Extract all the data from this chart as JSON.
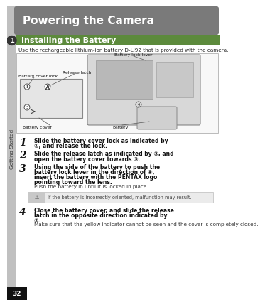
{
  "title": "Powering the Camera",
  "title_bg": "#7a7a7a",
  "title_color": "#ffffff",
  "section_title": "Installing the Battery",
  "section_bg": "#5c8a3c",
  "section_color": "#ffffff",
  "intro_text": "Use the rechargeable lithium-ion battery D-LI92 that is provided with the camera.",
  "step1_bold": "Slide the battery cover lock as indicated by ①, and release the lock.",
  "step2_bold": "Slide the release latch as indicated by ②, and open the battery cover towards ③.",
  "step3_bold": "Using the side of the battery to push the battery lock lever in the direction of ④, insert the battery with the PENTAX logo pointing toward the lens.",
  "step3_normal": "Push the battery in until it is locked in place.",
  "step4_bold": "Close the battery cover, and slide the release latch in the opposite direction indicated by ②.",
  "step4_normal": "Make sure that the yellow indicator cannot be seen and the cover is completely closed.",
  "warning_text": "If the battery is incorrectly oriented, malfunction may result.",
  "sidebar_text": "Getting Started",
  "page_num": "32",
  "bg_color": "#ffffff",
  "sidebar_bg": "#c0c0c0",
  "image_bg": "#f8f8f8",
  "image_border": "#bbbbbb",
  "warn_bg": "#ebebeb",
  "warn_icon_bg": "#c8c8c8",
  "label_battery_lock_lever": "Battery lock lever",
  "label_release_latch": "Release latch",
  "label_battery_cover_lock": "Battery cover lock",
  "label_battery_cover": "Battery cover",
  "label_battery": "Battery"
}
